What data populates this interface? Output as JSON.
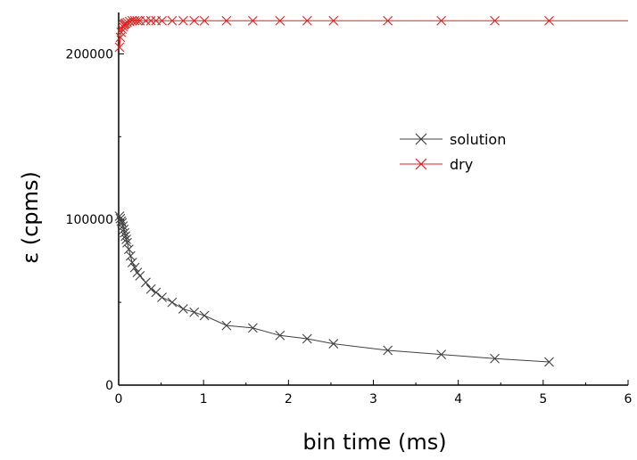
{
  "chart_data": {
    "type": "line",
    "xlabel": "bin time (ms)",
    "ylabel": "ε (cpms)",
    "xlim": [
      0,
      6
    ],
    "ylim": [
      0,
      225000
    ],
    "x_ticks": [
      "0",
      "1",
      "2",
      "3",
      "4",
      "5",
      "6"
    ],
    "y_ticks": [
      "0",
      "100000",
      "200000"
    ],
    "legend_position": "center-right",
    "series": [
      {
        "name": "solution",
        "color": "#404040",
        "marker": "x",
        "x": [
          0.01,
          0.02,
          0.03,
          0.04,
          0.05,
          0.06,
          0.07,
          0.08,
          0.09,
          0.1,
          0.12,
          0.14,
          0.16,
          0.19,
          0.22,
          0.25,
          0.32,
          0.38,
          0.44,
          0.51,
          0.63,
          0.76,
          0.89,
          1.01,
          1.27,
          1.58,
          1.9,
          2.22,
          2.53,
          3.17,
          3.8,
          4.43,
          5.07
        ],
        "y": [
          102000,
          100500,
          99000,
          98000,
          96000,
          94000,
          92000,
          90000,
          88000,
          86000,
          82000,
          78000,
          74000,
          71000,
          68000,
          66000,
          62000,
          58000,
          56000,
          53000,
          50000,
          46000,
          44000,
          42000,
          36000,
          34500,
          30000,
          28000,
          25000,
          21000,
          18500,
          16000,
          14000
        ]
      },
      {
        "name": "dry",
        "color": "#e02020",
        "marker": "x",
        "x": [
          0.01,
          0.02,
          0.03,
          0.04,
          0.05,
          0.06,
          0.07,
          0.08,
          0.1,
          0.13,
          0.16,
          0.19,
          0.22,
          0.25,
          0.32,
          0.38,
          0.44,
          0.51,
          0.63,
          0.76,
          0.89,
          1.01,
          1.27,
          1.58,
          1.9,
          2.22,
          2.53,
          3.17,
          3.8,
          4.43,
          5.07
        ],
        "y": [
          204000,
          210000,
          213000,
          215000,
          216500,
          217500,
          218000,
          218500,
          219000,
          219500,
          220000,
          220000,
          220000,
          220000,
          220000,
          220000,
          220000,
          220000,
          220000,
          220000,
          220000,
          220000,
          220000,
          220000,
          220000,
          220000,
          220000,
          220000,
          220000,
          220000,
          220000
        ],
        "line_extends_to_x": 6
      }
    ]
  }
}
